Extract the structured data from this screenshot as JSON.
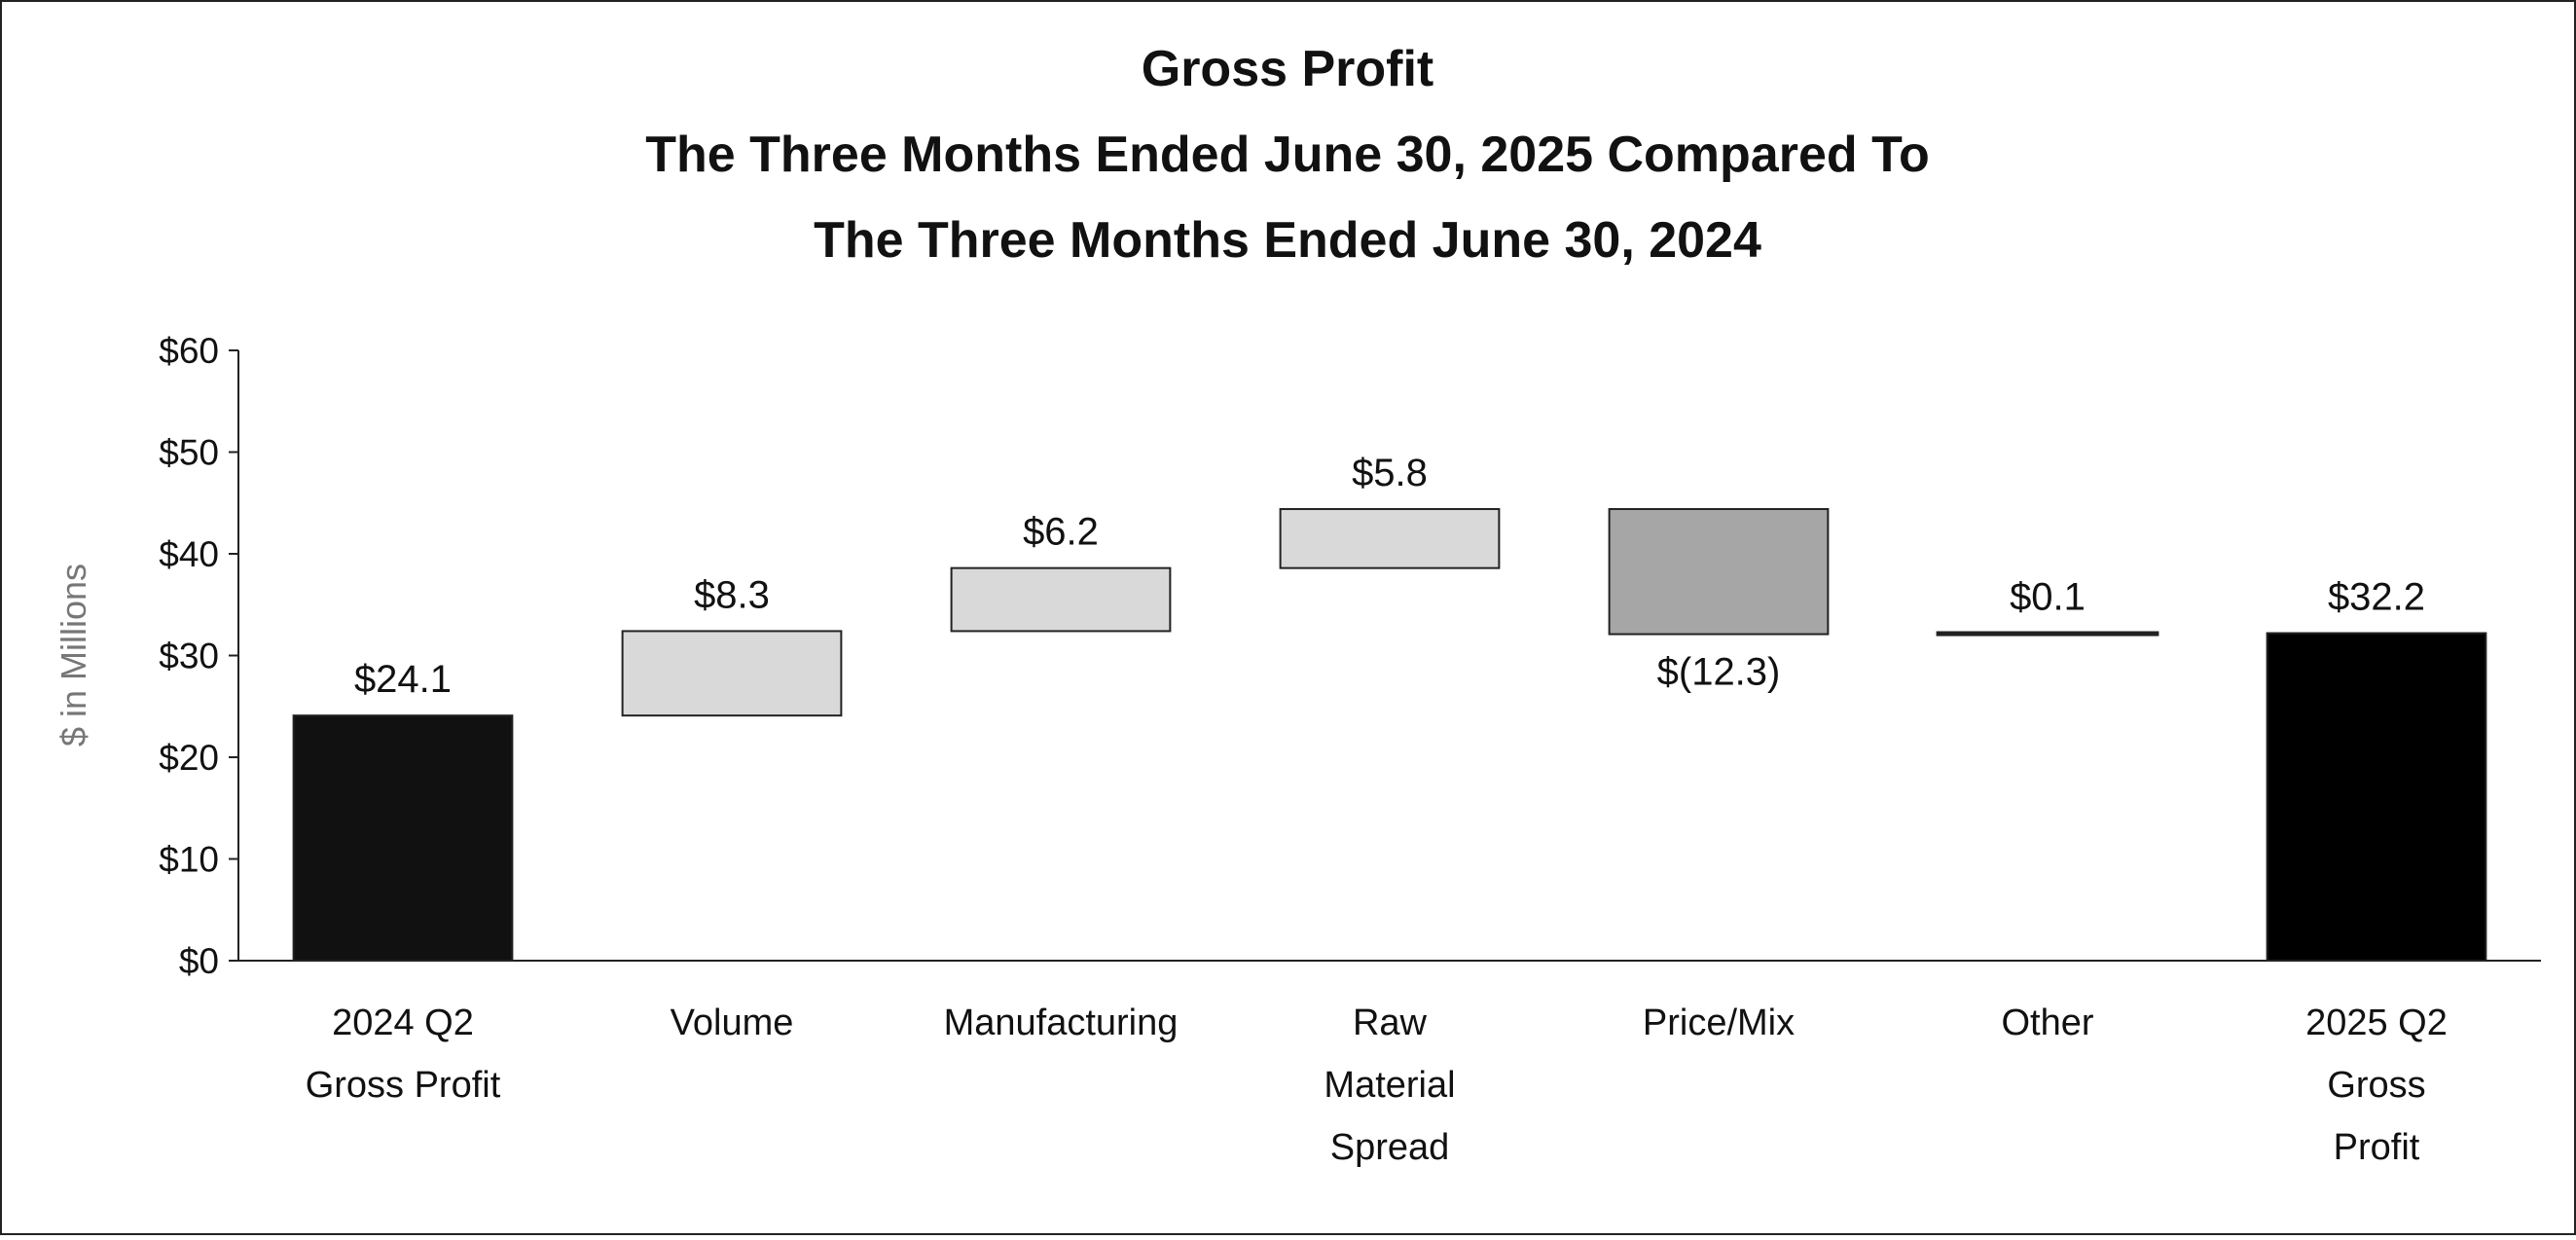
{
  "chart_data": {
    "type": "waterfall",
    "title": [
      "Gross Profit",
      "The Three Months Ended June 30, 2025 Compared To",
      "The Three Months Ended June 30, 2024"
    ],
    "ylabel": "$ in Millions",
    "categories": [
      "2024 Q2\nGross Profit",
      "Volume",
      "Manufacturing",
      "Raw\nMaterial\nSpread",
      "Price/Mix",
      "Other",
      "2025 Q2\nGross\nProfit"
    ],
    "measure": [
      "absolute",
      "relative",
      "relative",
      "relative",
      "relative",
      "relative",
      "total"
    ],
    "values": [
      24.1,
      8.3,
      6.2,
      5.8,
      -12.3,
      0.1,
      32.2
    ],
    "value_labels": [
      "$24.1",
      "$8.3",
      "$6.2",
      "$5.8",
      "$(12.3)",
      "$0.1",
      "$32.2"
    ],
    "colors": [
      "#111111",
      "#d9d9d9",
      "#d9d9d9",
      "#d9d9d9",
      "#a6a6a6",
      "#000000",
      "#000000"
    ],
    "edgecolor": "#222222",
    "ylim": [
      0,
      60
    ],
    "yticks": [
      {
        "value": 0,
        "label": "$0"
      },
      {
        "value": 10,
        "label": "$10"
      },
      {
        "value": 20,
        "label": "$20"
      },
      {
        "value": 30,
        "label": "$30"
      },
      {
        "value": 40,
        "label": "$40"
      },
      {
        "value": 50,
        "label": "$50"
      },
      {
        "value": 60,
        "label": "$60"
      }
    ],
    "grid": false
  }
}
